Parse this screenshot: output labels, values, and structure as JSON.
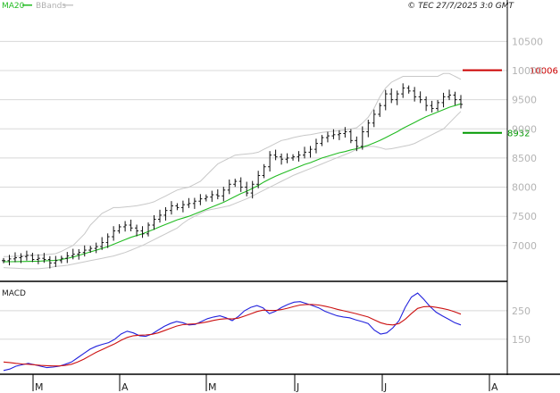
{
  "header": {
    "copyright": "© TEC 27/7/2025 3:0 GMT"
  },
  "chart_data": [
    {
      "type": "line",
      "name": "price",
      "legend": [
        {
          "name": "MA20",
          "color": "#22bb22"
        },
        {
          "name": "BBands",
          "color": "#c0c0c0"
        }
      ],
      "x_labels": [
        "M",
        "A",
        "M",
        "J",
        "J",
        "A"
      ],
      "ylim": [
        6400,
        10950
      ],
      "y_ticks": [
        7000,
        7500,
        8000,
        8500,
        9000,
        9500,
        10000,
        10500
      ],
      "y_tick_labels": [
        "7000",
        "7500",
        "8000",
        "8500",
        "9000",
        "9500",
        "10000",
        "10500"
      ],
      "levels": [
        {
          "label": "10006",
          "value": 10006,
          "color": "#cc0000"
        },
        {
          "label": "8932",
          "value": 8932,
          "color": "#009900"
        }
      ],
      "price": [
        6740,
        6770,
        6790,
        6810,
        6830,
        6760,
        6780,
        6760,
        6700,
        6740,
        6780,
        6820,
        6850,
        6880,
        6920,
        6950,
        6980,
        7050,
        7150,
        7250,
        7320,
        7350,
        7300,
        7250,
        7200,
        7350,
        7450,
        7520,
        7600,
        7680,
        7650,
        7700,
        7720,
        7760,
        7800,
        7830,
        7870,
        7850,
        7950,
        8050,
        8100,
        8000,
        7900,
        8050,
        8200,
        8350,
        8550,
        8520,
        8480,
        8500,
        8520,
        8550,
        8600,
        8650,
        8750,
        8850,
        8880,
        8900,
        8920,
        8950,
        8800,
        8700,
        8950,
        9100,
        9250,
        9400,
        9600,
        9500,
        9600,
        9700,
        9650,
        9550,
        9500,
        9400,
        9350,
        9450,
        9550,
        9580,
        9500,
        9420
      ],
      "ma20": [
        6720,
        6722,
        6724,
        6725,
        6727,
        6728,
        6730,
        6735,
        6740,
        6745,
        6760,
        6780,
        6800,
        6830,
        6860,
        6890,
        6920,
        6950,
        6980,
        7020,
        7060,
        7100,
        7140,
        7170,
        7200,
        7240,
        7280,
        7320,
        7360,
        7400,
        7440,
        7470,
        7500,
        7540,
        7580,
        7620,
        7660,
        7700,
        7740,
        7790,
        7840,
        7890,
        7930,
        7980,
        8030,
        8090,
        8140,
        8190,
        8230,
        8270,
        8310,
        8350,
        8390,
        8420,
        8460,
        8500,
        8530,
        8560,
        8590,
        8610,
        8640,
        8660,
        8690,
        8720,
        8760,
        8800,
        8850,
        8900,
        8950,
        9010,
        9060,
        9110,
        9160,
        9210,
        9250,
        9290,
        9330,
        9370,
        9400,
        9430
      ],
      "bb_upper": [
        6810,
        6810,
        6815,
        6820,
        6830,
        6830,
        6835,
        6840,
        6850,
        6860,
        6900,
        6950,
        7000,
        7100,
        7200,
        7350,
        7450,
        7550,
        7600,
        7650,
        7650,
        7660,
        7670,
        7680,
        7700,
        7720,
        7750,
        7800,
        7850,
        7900,
        7950,
        7980,
        8000,
        8050,
        8100,
        8200,
        8300,
        8400,
        8450,
        8500,
        8550,
        8560,
        8570,
        8580,
        8600,
        8650,
        8700,
        8750,
        8800,
        8820,
        8850,
        8870,
        8890,
        8900,
        8920,
        8940,
        8950,
        8960,
        8970,
        8980,
        9000,
        9020,
        9100,
        9200,
        9350,
        9550,
        9700,
        9800,
        9850,
        9900,
        9900,
        9900,
        9900,
        9900,
        9900,
        9900,
        9950,
        9950,
        9900,
        9850
      ],
      "bb_lower": [
        6620,
        6615,
        6610,
        6605,
        6600,
        6600,
        6600,
        6610,
        6620,
        6640,
        6650,
        6660,
        6680,
        6700,
        6720,
        6740,
        6760,
        6780,
        6800,
        6820,
        6850,
        6880,
        6920,
        6960,
        7000,
        7050,
        7100,
        7150,
        7200,
        7250,
        7300,
        7380,
        7450,
        7500,
        7550,
        7600,
        7620,
        7640,
        7660,
        7680,
        7720,
        7760,
        7800,
        7850,
        7900,
        7950,
        8000,
        8050,
        8100,
        8150,
        8200,
        8240,
        8280,
        8320,
        8360,
        8400,
        8440,
        8480,
        8520,
        8560,
        8600,
        8650,
        8680,
        8700,
        8700,
        8680,
        8650,
        8660,
        8680,
        8700,
        8720,
        8750,
        8800,
        8850,
        8900,
        8950,
        9000,
        9100,
        9200,
        9300
      ]
    },
    {
      "type": "line",
      "name": "MACD",
      "title": "MACD",
      "ylim": [
        30,
        350
      ],
      "y_ticks": [
        150,
        250
      ],
      "y_tick_labels": [
        "150",
        "250"
      ],
      "series": [
        {
          "color": "#2222dd",
          "values": [
            40,
            45,
            55,
            60,
            65,
            60,
            55,
            50,
            52,
            55,
            62,
            70,
            85,
            100,
            115,
            125,
            132,
            138,
            150,
            168,
            178,
            172,
            162,
            160,
            168,
            182,
            195,
            205,
            212,
            208,
            200,
            202,
            212,
            222,
            228,
            232,
            225,
            215,
            230,
            250,
            262,
            268,
            260,
            240,
            248,
            262,
            272,
            280,
            282,
            275,
            268,
            260,
            248,
            240,
            232,
            228,
            225,
            218,
            212,
            205,
            182,
            168,
            172,
            190,
            215,
            262,
            298,
            312,
            290,
            265,
            245,
            232,
            220,
            208,
            200
          ]
        },
        {
          "color": "#cc1111",
          "values": [
            70,
            68,
            65,
            63,
            62,
            60,
            58,
            57,
            56,
            56,
            58,
            62,
            70,
            80,
            92,
            104,
            114,
            124,
            134,
            146,
            156,
            162,
            164,
            165,
            167,
            172,
            180,
            188,
            196,
            201,
            203,
            204,
            207,
            211,
            216,
            220,
            222,
            221,
            224,
            231,
            239,
            247,
            252,
            251,
            251,
            254,
            259,
            265,
            270,
            272,
            272,
            270,
            266,
            261,
            255,
            250,
            245,
            240,
            234,
            228,
            218,
            208,
            202,
            200,
            205,
            220,
            240,
            258,
            264,
            265,
            262,
            258,
            253,
            246,
            238
          ]
        }
      ]
    }
  ]
}
